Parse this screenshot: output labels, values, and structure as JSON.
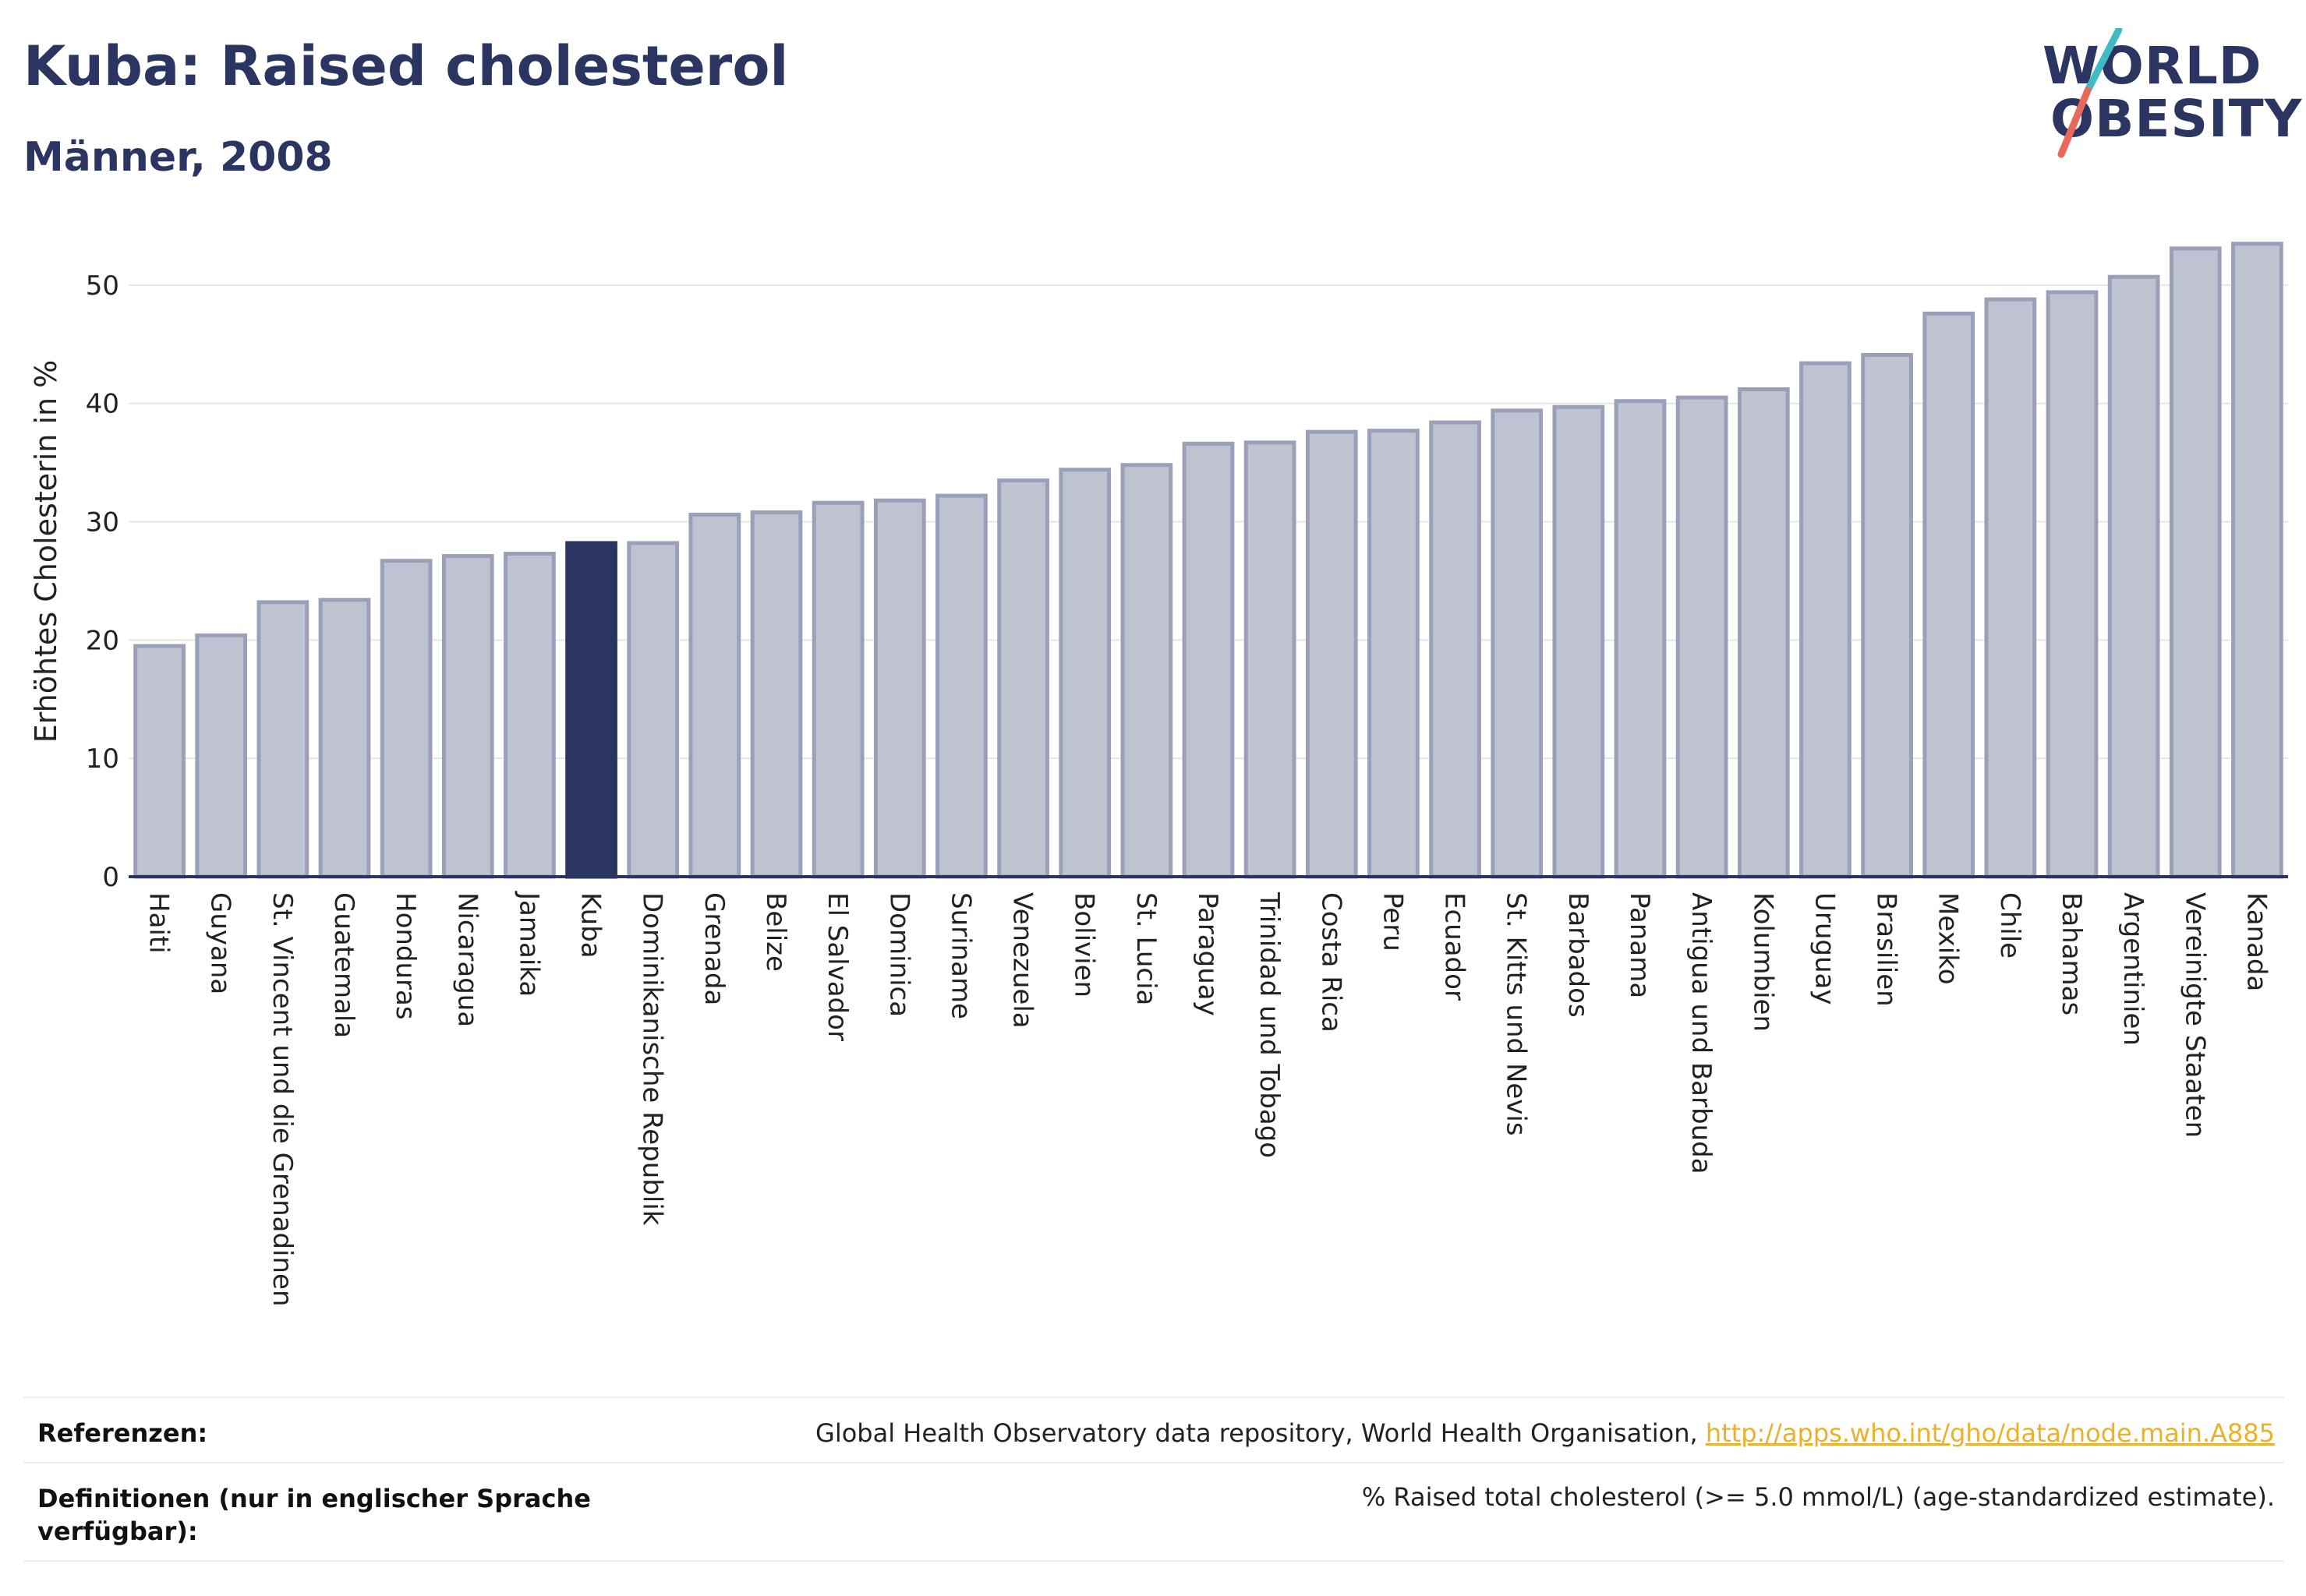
{
  "header": {
    "title": "Kuba: Raised cholesterol",
    "subtitle": "Männer, 2008",
    "logo_line1": "WORLD",
    "logo_line2": "OBESITY"
  },
  "colors": {
    "bar": "#bfc3d1",
    "bar_border": "#9aa0b8",
    "highlight": "#2b3561",
    "text": "#2b3561",
    "link": "#e9b12e",
    "logo_slash_top": "#3fbcc1",
    "logo_slash_bottom": "#e8685a"
  },
  "chart_data": {
    "type": "bar",
    "ylabel": "Erhöhtes Cholesterin in %",
    "xlabel": "",
    "ylim": [
      0,
      55
    ],
    "yticks": [
      0,
      10,
      20,
      30,
      40,
      50
    ],
    "grid": true,
    "highlight": "Kuba",
    "categories": [
      "Haiti",
      "Guyana",
      "St. Vincent und die Grenadinen",
      "Guatemala",
      "Honduras",
      "Nicaragua",
      "Jamaika",
      "Kuba",
      "Dominikanische Republik",
      "Grenada",
      "Belize",
      "El Salvador",
      "Dominica",
      "Suriname",
      "Venezuela",
      "Bolivien",
      "St. Lucia",
      "Paraguay",
      "Trinidad und Tobago",
      "Costa Rica",
      "Peru",
      "Ecuador",
      "St. Kitts und Nevis",
      "Barbados",
      "Panama",
      "Antigua und Barbuda",
      "Kolumbien",
      "Uruguay",
      "Brasilien",
      "Mexiko",
      "Chile",
      "Bahamas",
      "Argentinien",
      "Vereinigte Staaten",
      "Kanada"
    ],
    "values": [
      19.5,
      20.4,
      23.2,
      23.4,
      26.7,
      27.1,
      27.3,
      28.2,
      28.2,
      30.6,
      30.8,
      31.6,
      31.8,
      32.2,
      33.5,
      34.4,
      34.8,
      36.6,
      36.7,
      37.6,
      37.7,
      38.4,
      39.4,
      39.7,
      40.2,
      40.5,
      41.2,
      43.4,
      44.1,
      47.6,
      48.8,
      49.4,
      50.7,
      53.1,
      53.5
    ]
  },
  "footer": {
    "references_label": "Referenzen:",
    "references_text": "Global Health Observatory data repository, World Health Organisation, ",
    "references_link": "http://apps.who.int/gho/data/node.main.A885",
    "definitions_label": "Definitionen (nur in englischer Sprache verfügbar):",
    "definitions_text": "% Raised total cholesterol (>= 5.0 mmol/L) (age-standardized estimate)."
  }
}
